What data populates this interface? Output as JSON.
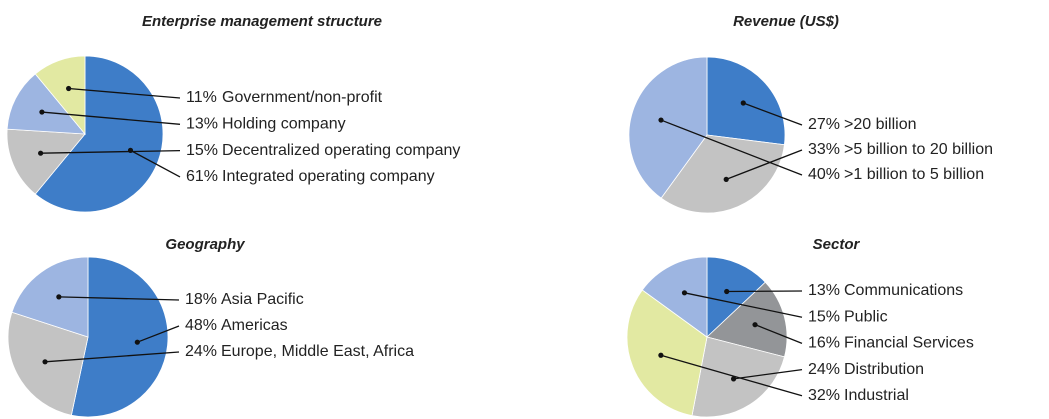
{
  "chart_data": [
    {
      "type": "pie",
      "title": "Enterprise management structure",
      "categories": [
        "Government/non-profit",
        "Holding company",
        "Decentralized operating company",
        "Integrated operating company"
      ],
      "values": [
        11,
        13,
        15,
        61
      ],
      "value_labels": [
        "11%",
        "13%",
        "15%",
        "61%"
      ],
      "colors": [
        "#e2e9a2",
        "#9db5e1",
        "#c3c3c3",
        "#3e7dc8"
      ]
    },
    {
      "type": "pie",
      "title": "Revenue (US$)",
      "categories": [
        ">20 billion",
        ">5 billion to 20 billion",
        ">1 billion to 5 billion"
      ],
      "values": [
        27,
        33,
        40
      ],
      "value_labels": [
        "27%",
        "33%",
        "40%"
      ],
      "colors": [
        "#3e7dc8",
        "#c3c3c3",
        "#9db5e1"
      ]
    },
    {
      "type": "pie",
      "title": "Geography",
      "categories": [
        "Asia Pacific",
        "Americas",
        "Europe, Middle East, Africa"
      ],
      "values": [
        18,
        48,
        24
      ],
      "value_labels": [
        "18%",
        "48%",
        "24%"
      ],
      "colors": [
        "#9db5e1",
        "#3e7dc8",
        "#c3c3c3"
      ]
    },
    {
      "type": "pie",
      "title": "Sector",
      "categories": [
        "Communications",
        "Public",
        "Financial Services",
        "Distribution",
        "Industrial"
      ],
      "values": [
        13,
        15,
        16,
        24,
        32
      ],
      "value_labels": [
        "13%",
        "15%",
        "16%",
        "24%",
        "32%"
      ],
      "colors": [
        "#3e7dc8",
        "#9db5e1",
        "#939598",
        "#c3c3c3",
        "#e2e9a2"
      ]
    }
  ]
}
